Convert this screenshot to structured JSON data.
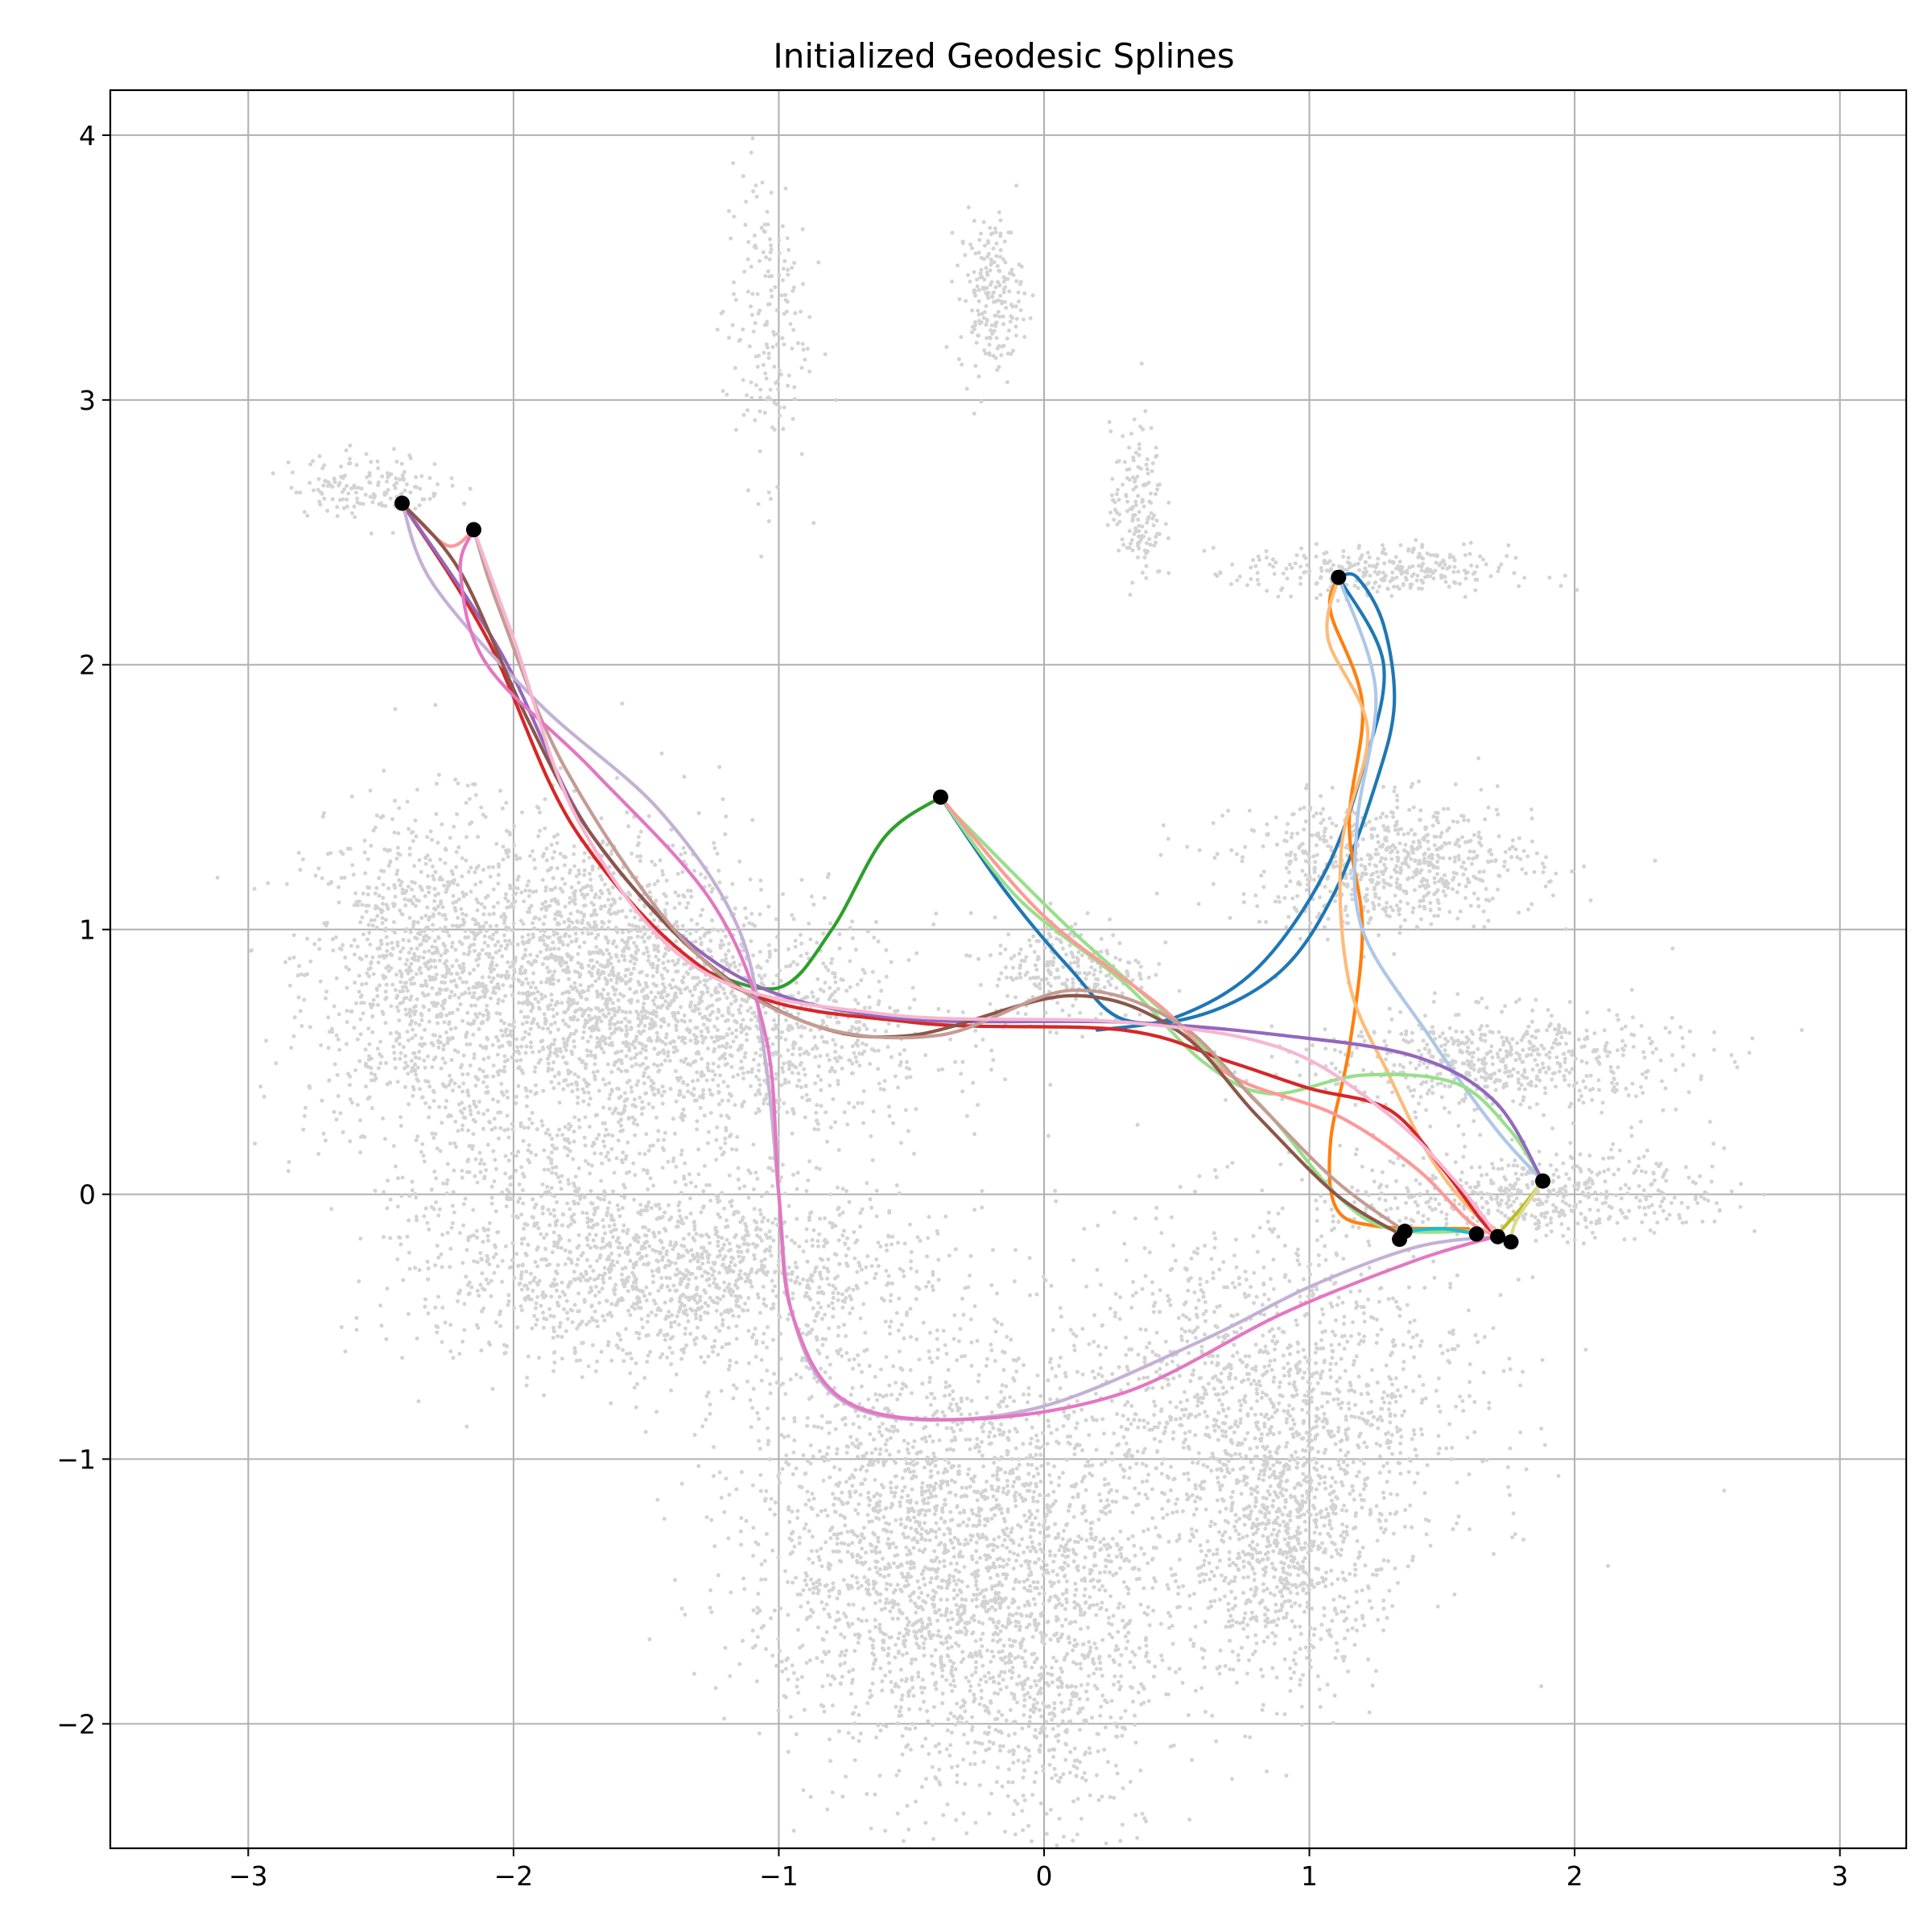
{
  "chart_data": {
    "type": "line",
    "title": "Initialized Geodesic Splines",
    "xlabel": "",
    "ylabel": "",
    "xlim": [
      -3.52,
      3.25
    ],
    "ylim": [
      -2.47,
      4.17
    ],
    "xticks": [
      -3,
      -2,
      -1,
      0,
      1,
      2,
      3
    ],
    "yticks": [
      -2,
      -1,
      0,
      1,
      2,
      3,
      4
    ],
    "xtick_labels": [
      "−3",
      "−2",
      "−1",
      "0",
      "1",
      "2",
      "3"
    ],
    "ytick_labels": [
      "−2",
      "−1",
      "0",
      "1",
      "2",
      "3",
      "4"
    ],
    "grid": true,
    "background_color": "#d3d3d3",
    "background_clusters": [
      {
        "cx": -2.35,
        "cy": 0.85,
        "sx": 0.22,
        "sy": 0.3,
        "n": 900
      },
      {
        "cx": -1.7,
        "cy": 0.85,
        "sx": 0.3,
        "sy": 0.28,
        "n": 1400
      },
      {
        "cx": -1.1,
        "cy": 0.6,
        "sx": 0.35,
        "sy": 0.22,
        "n": 900
      },
      {
        "cx": -1.35,
        "cy": -0.3,
        "sx": 0.45,
        "sy": 0.18,
        "n": 1300
      },
      {
        "cx": -1.9,
        "cy": 0.1,
        "sx": 0.35,
        "sy": 0.35,
        "n": 600
      },
      {
        "cx": -0.55,
        "cy": -1.3,
        "sx": 0.3,
        "sy": 0.4,
        "n": 1500
      },
      {
        "cx": -0.05,
        "cy": -1.6,
        "sx": 0.25,
        "sy": 0.45,
        "n": 1300
      },
      {
        "cx": 0.85,
        "cy": -0.8,
        "sx": 0.4,
        "sy": 0.35,
        "n": 1400
      },
      {
        "cx": 0.9,
        "cy": -1.35,
        "sx": 0.18,
        "sy": 0.25,
        "n": 700
      },
      {
        "cx": 1.3,
        "cy": 1.25,
        "sx": 0.28,
        "sy": 0.12,
        "n": 700
      },
      {
        "cx": 1.7,
        "cy": 0.5,
        "sx": 0.35,
        "sy": 0.1,
        "n": 600
      },
      {
        "cx": 1.85,
        "cy": 0.0,
        "sx": 0.35,
        "sy": 0.08,
        "n": 500
      },
      {
        "cx": 1.25,
        "cy": 2.35,
        "sx": 0.25,
        "sy": 0.05,
        "n": 300
      },
      {
        "cx": 0.1,
        "cy": 0.85,
        "sx": 0.15,
        "sy": 0.1,
        "n": 250
      },
      {
        "cx": -0.2,
        "cy": 3.4,
        "sx": 0.06,
        "sy": 0.15,
        "n": 200
      },
      {
        "cx": -1.05,
        "cy": 3.3,
        "sx": 0.08,
        "sy": 0.3,
        "n": 180
      },
      {
        "cx": 0.35,
        "cy": 2.6,
        "sx": 0.05,
        "sy": 0.15,
        "n": 150
      },
      {
        "cx": -2.55,
        "cy": 2.68,
        "sx": 0.15,
        "sy": 0.06,
        "n": 150
      }
    ],
    "endpoints": [
      {
        "x": -2.42,
        "y": 2.61
      },
      {
        "x": -2.15,
        "y": 2.51
      },
      {
        "x": -0.39,
        "y": 1.5
      },
      {
        "x": 1.11,
        "y": 2.33
      },
      {
        "x": 1.88,
        "y": 0.05
      },
      {
        "x": 1.36,
        "y": -0.14
      },
      {
        "x": 1.34,
        "y": -0.17
      },
      {
        "x": 1.63,
        "y": -0.15
      },
      {
        "x": 1.71,
        "y": -0.16
      },
      {
        "x": 1.76,
        "y": -0.18
      }
    ],
    "series": [
      {
        "color": "#1f77b4",
        "points": [
          [
            -0.39,
            1.5
          ],
          [
            -0.15,
            1.15
          ],
          [
            0.1,
            0.85
          ],
          [
            0.3,
            0.66
          ],
          [
            0.6,
            0.68
          ],
          [
            0.9,
            0.85
          ],
          [
            1.1,
            1.15
          ],
          [
            1.25,
            1.55
          ],
          [
            1.32,
            1.85
          ],
          [
            1.28,
            2.15
          ],
          [
            1.18,
            2.33
          ],
          [
            1.11,
            2.33
          ]
        ]
      },
      {
        "color": "#1f77b4",
        "points": [
          [
            1.11,
            2.33
          ],
          [
            1.28,
            2.0
          ],
          [
            1.2,
            1.6
          ],
          [
            1.05,
            1.2
          ],
          [
            0.8,
            0.85
          ],
          [
            0.5,
            0.67
          ],
          [
            0.2,
            0.62
          ]
        ]
      },
      {
        "color": "#ff7f0e",
        "points": [
          [
            1.11,
            2.33
          ],
          [
            1.08,
            2.2
          ],
          [
            1.2,
            1.85
          ],
          [
            1.15,
            1.4
          ],
          [
            1.2,
            1.0
          ],
          [
            1.15,
            0.55
          ],
          [
            1.08,
            0.2
          ],
          [
            1.1,
            -0.05
          ],
          [
            1.25,
            -0.12
          ],
          [
            1.6,
            -0.13
          ]
        ]
      },
      {
        "color": "#ffbb78",
        "points": [
          [
            1.11,
            2.33
          ],
          [
            1.07,
            2.1
          ],
          [
            1.22,
            1.75
          ],
          [
            1.12,
            1.3
          ],
          [
            1.15,
            0.8
          ],
          [
            1.3,
            0.45
          ],
          [
            1.45,
            0.15
          ],
          [
            1.6,
            -0.05
          ],
          [
            1.7,
            -0.13
          ]
        ]
      },
      {
        "color": "#aec7e8",
        "points": [
          [
            1.11,
            2.33
          ],
          [
            1.25,
            1.9
          ],
          [
            1.18,
            1.4
          ],
          [
            1.2,
            1.0
          ],
          [
            1.45,
            0.6
          ],
          [
            1.7,
            0.25
          ],
          [
            1.88,
            0.05
          ]
        ]
      },
      {
        "color": "#2ca02c",
        "points": [
          [
            -0.39,
            1.5
          ],
          [
            -0.6,
            1.35
          ],
          [
            -0.8,
            1.0
          ],
          [
            -1.0,
            0.78
          ],
          [
            -1.3,
            0.85
          ]
        ]
      },
      {
        "color": "#98df8a",
        "points": [
          [
            -0.39,
            1.5
          ],
          [
            -0.1,
            1.12
          ],
          [
            0.3,
            0.8
          ],
          [
            0.6,
            0.5
          ],
          [
            0.85,
            0.38
          ],
          [
            1.2,
            0.45
          ],
          [
            1.55,
            0.42
          ],
          [
            1.75,
            0.25
          ],
          [
            1.88,
            0.05
          ]
        ]
      },
      {
        "color": "#98df8a",
        "points": [
          [
            -0.35,
            1.45
          ],
          [
            0.1,
            1.0
          ],
          [
            0.55,
            0.6
          ],
          [
            0.85,
            0.3
          ],
          [
            1.1,
            0.0
          ],
          [
            1.3,
            -0.13
          ],
          [
            1.6,
            -0.14
          ]
        ]
      },
      {
        "color": "#d62728",
        "points": [
          [
            -2.42,
            2.61
          ],
          [
            -2.1,
            2.1
          ],
          [
            -1.75,
            1.35
          ],
          [
            -1.2,
            0.8
          ],
          [
            -0.5,
            0.65
          ],
          [
            0.3,
            0.62
          ],
          [
            0.7,
            0.5
          ],
          [
            1.0,
            0.4
          ],
          [
            1.3,
            0.32
          ],
          [
            1.5,
            0.1
          ],
          [
            1.65,
            -0.1
          ],
          [
            1.71,
            -0.16
          ]
        ]
      },
      {
        "color": "#ff9896",
        "points": [
          [
            -2.42,
            2.61
          ],
          [
            -2.25,
            2.45
          ],
          [
            -2.15,
            2.51
          ]
        ]
      },
      {
        "color": "#ff9896",
        "points": [
          [
            -0.39,
            1.5
          ],
          [
            0.0,
            1.05
          ],
          [
            0.45,
            0.7
          ],
          [
            0.7,
            0.45
          ],
          [
            1.1,
            0.3
          ],
          [
            1.4,
            0.1
          ],
          [
            1.6,
            -0.1
          ],
          [
            1.71,
            -0.16
          ]
        ]
      },
      {
        "color": "#9467bd",
        "points": [
          [
            -2.42,
            2.61
          ],
          [
            -2.05,
            2.05
          ],
          [
            -1.7,
            1.35
          ],
          [
            -1.2,
            0.85
          ],
          [
            -0.6,
            0.67
          ],
          [
            0.3,
            0.65
          ],
          [
            0.9,
            0.6
          ],
          [
            1.4,
            0.52
          ],
          [
            1.7,
            0.35
          ],
          [
            1.88,
            0.05
          ]
        ]
      },
      {
        "color": "#c5b0d5",
        "points": [
          [
            -2.42,
            2.61
          ],
          [
            -2.3,
            2.3
          ],
          [
            -1.9,
            1.85
          ],
          [
            -1.45,
            1.45
          ],
          [
            -1.15,
            1.0
          ],
          [
            -1.05,
            0.5
          ],
          [
            -1.0,
            0.0
          ],
          [
            -0.95,
            -0.45
          ],
          [
            -0.8,
            -0.75
          ],
          [
            -0.5,
            -0.85
          ],
          [
            0.0,
            -0.8
          ],
          [
            0.6,
            -0.55
          ],
          [
            1.0,
            -0.35
          ],
          [
            1.4,
            -0.2
          ],
          [
            1.7,
            -0.16
          ]
        ]
      },
      {
        "color": "#8c564b",
        "points": [
          [
            -2.42,
            2.61
          ],
          [
            -2.2,
            2.35
          ],
          [
            -1.95,
            1.8
          ],
          [
            -1.7,
            1.35
          ],
          [
            -1.3,
            0.9
          ],
          [
            -0.9,
            0.65
          ],
          [
            -0.5,
            0.6
          ],
          [
            0.1,
            0.75
          ],
          [
            0.5,
            0.62
          ],
          [
            0.8,
            0.3
          ],
          [
            1.1,
            0.0
          ],
          [
            1.34,
            -0.15
          ]
        ]
      },
      {
        "color": "#c49c94",
        "points": [
          [
            -2.15,
            2.51
          ],
          [
            -2.05,
            2.2
          ],
          [
            -1.8,
            1.6
          ],
          [
            -1.35,
            0.95
          ],
          [
            -0.9,
            0.65
          ],
          [
            -0.4,
            0.6
          ],
          [
            0.1,
            0.77
          ],
          [
            0.5,
            0.65
          ],
          [
            0.8,
            0.35
          ],
          [
            1.1,
            0.05
          ],
          [
            1.36,
            -0.14
          ]
        ]
      },
      {
        "color": "#e377c2",
        "points": [
          [
            -2.15,
            2.51
          ],
          [
            -2.2,
            2.35
          ],
          [
            -2.1,
            2.0
          ],
          [
            -1.7,
            1.6
          ],
          [
            -1.25,
            1.1
          ],
          [
            -1.05,
            0.6
          ],
          [
            -1.0,
            0.0
          ],
          [
            -0.95,
            -0.45
          ],
          [
            -0.75,
            -0.78
          ],
          [
            -0.3,
            -0.85
          ],
          [
            0.3,
            -0.75
          ],
          [
            0.9,
            -0.45
          ],
          [
            1.4,
            -0.25
          ],
          [
            1.7,
            -0.16
          ]
        ]
      },
      {
        "color": "#f7b6d2",
        "points": [
          [
            -2.15,
            2.51
          ],
          [
            -2.0,
            2.1
          ],
          [
            -1.75,
            1.4
          ],
          [
            -1.3,
            0.85
          ],
          [
            -0.6,
            0.68
          ],
          [
            0.3,
            0.65
          ],
          [
            0.9,
            0.55
          ],
          [
            1.3,
            0.3
          ],
          [
            1.55,
            0.05
          ],
          [
            1.71,
            -0.16
          ]
        ]
      },
      {
        "color": "#bcbd22",
        "points": [
          [
            1.88,
            0.05
          ],
          [
            1.8,
            -0.05
          ],
          [
            1.72,
            -0.14
          ]
        ]
      },
      {
        "color": "#dbdb8d",
        "points": [
          [
            1.88,
            0.05
          ],
          [
            1.78,
            -0.1
          ],
          [
            1.76,
            -0.18
          ]
        ]
      },
      {
        "color": "#17becf",
        "points": [
          [
            1.36,
            -0.14
          ],
          [
            1.5,
            -0.13
          ],
          [
            1.63,
            -0.15
          ]
        ]
      }
    ]
  }
}
